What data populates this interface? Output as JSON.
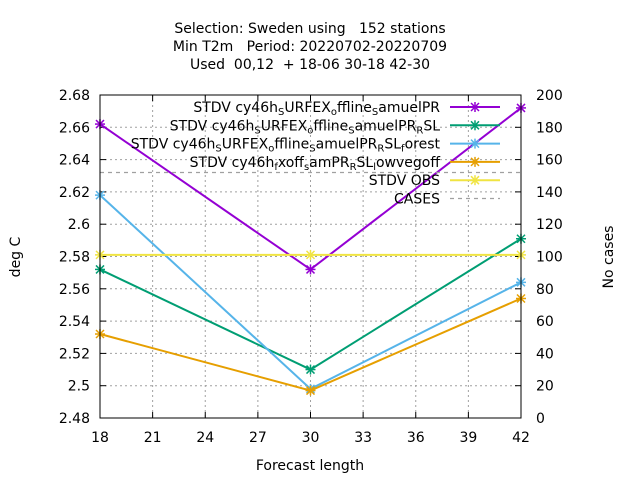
{
  "chart_data": {
    "type": "line",
    "title_lines": [
      "Selection: Sweden using   152 stations",
      "Min T2m   Period: 20220702-20220709",
      "Used  00,12  + 18-06 30-18 42-30"
    ],
    "xlabel": "Forecast length",
    "ylabel": "deg C",
    "y2label": "No cases",
    "x": [
      18,
      30,
      42
    ],
    "xlim": [
      18,
      42
    ],
    "xticks": [
      "18",
      "21",
      "24",
      "27",
      "30",
      "33",
      "36",
      "39",
      "42"
    ],
    "ylim": [
      2.48,
      2.68
    ],
    "yticks": [
      "2.48",
      "2.5",
      "2.52",
      "2.54",
      "2.56",
      "2.58",
      "2.6",
      "2.62",
      "2.64",
      "2.66",
      "2.68"
    ],
    "y2lim": [
      0,
      200
    ],
    "y2ticks": [
      "0",
      "20",
      "40",
      "60",
      "80",
      "100",
      "120",
      "140",
      "160",
      "180",
      "200"
    ],
    "grid": true,
    "legend_position": "top-right",
    "series": [
      {
        "name": "STDV cy46h_SURFEX_offline_samuelPR",
        "name_parts": [
          [
            "STDV cy46h",
            0
          ],
          [
            "S",
            1
          ],
          [
            "URFEX",
            0
          ],
          [
            "o",
            1
          ],
          [
            "ffline",
            0
          ],
          [
            "S",
            1
          ],
          [
            "amuelPR",
            0
          ]
        ],
        "color": "#9400d3",
        "values": [
          2.662,
          2.572,
          2.672
        ],
        "axis": "y"
      },
      {
        "name": "STDV cy46h_SURFEX_offline_samuelPR_RSL",
        "name_parts": [
          [
            "STDV cy46h",
            0
          ],
          [
            "S",
            1
          ],
          [
            "URFEX",
            0
          ],
          [
            "o",
            1
          ],
          [
            "ffline",
            0
          ],
          [
            "S",
            1
          ],
          [
            "amuelPR",
            0
          ],
          [
            "R",
            1
          ],
          [
            "SL",
            0
          ]
        ],
        "color": "#009e73",
        "values": [
          2.572,
          2.51,
          2.591
        ],
        "axis": "y"
      },
      {
        "name": "STDV cy46h_SURFEX_offline_samuelPR_RSL_forest",
        "name_parts": [
          [
            "STDV cy46h",
            0
          ],
          [
            "S",
            1
          ],
          [
            "URFEX",
            0
          ],
          [
            "o",
            1
          ],
          [
            "ffline",
            0
          ],
          [
            "S",
            1
          ],
          [
            "amuelPR",
            0
          ],
          [
            "R",
            1
          ],
          [
            "SL",
            0
          ],
          [
            "f",
            1
          ],
          [
            "orest",
            0
          ]
        ],
        "color": "#56b4e9",
        "values": [
          2.618,
          2.498,
          2.564
        ],
        "axis": "y"
      },
      {
        "name": "STDV cy46h_fxoff_samPR_RSL_lowvegoff",
        "name_parts": [
          [
            "STDV cy46h",
            0
          ],
          [
            "f",
            1
          ],
          [
            "xoff",
            0
          ],
          [
            "s",
            1
          ],
          [
            "amPR",
            0
          ],
          [
            "R",
            1
          ],
          [
            "SL",
            0
          ],
          [
            "l",
            1
          ],
          [
            "owvegoff",
            0
          ]
        ],
        "color": "#e69f00",
        "values": [
          2.532,
          2.497,
          2.554
        ],
        "axis": "y"
      },
      {
        "name": "STDV OBS",
        "name_parts": [
          [
            "STDV OBS",
            0
          ]
        ],
        "color": "#f0e442",
        "values": [
          2.581,
          2.581,
          2.581
        ],
        "axis": "y"
      },
      {
        "name": "CASES",
        "name_parts": [
          [
            "CASES",
            0
          ]
        ],
        "color": "#a0a0a0",
        "values": [
          152,
          152,
          152
        ],
        "axis": "y2",
        "dashed": true
      }
    ]
  }
}
